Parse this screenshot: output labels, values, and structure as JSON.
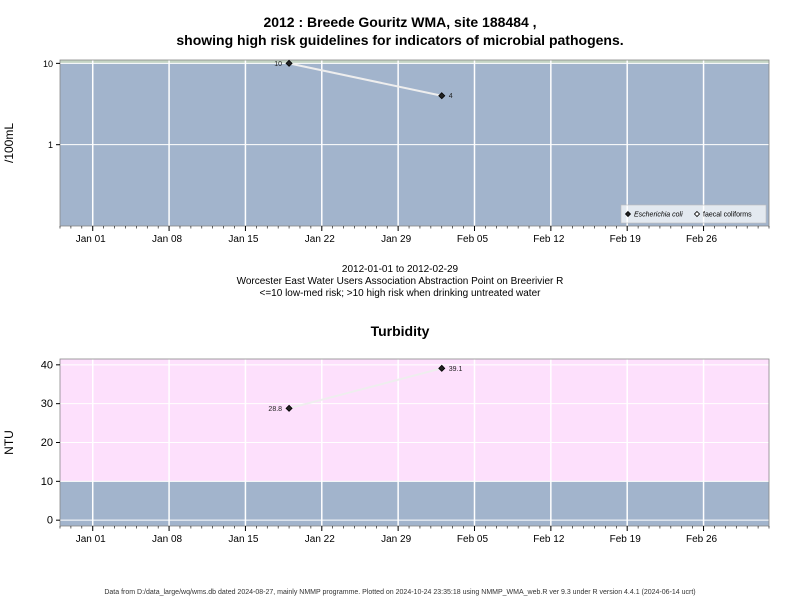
{
  "figure": {
    "title_line1": "2012 : Breede Gouritz WMA, site 188484 ,",
    "title_line2": "showing high risk guidelines for indicators of microbial pathogens.",
    "caption_line1": "2012-01-01 to 2012-02-29",
    "caption_line2": "Worcester East Water Users Association Abstraction Point on Breerivier R",
    "caption_line3": "<=10 low-med risk; >10 high risk when drinking untreated water",
    "footer": "Data from D:/data_large/wq/wms.db dated 2024-08-27, mainly NMMP programme. Plotted on 2024-10-24 23:35:18 using NMMP_WMA_web.R ver 9.3 under R version 4.4.1 (2024-06-14 ucrt)"
  },
  "chart_data": [
    {
      "type": "line",
      "ylabel": "/100mL",
      "y_scale": "log",
      "xlim": [
        "2011-12-29",
        "2012-03-03"
      ],
      "ylim": [
        0.1,
        11
      ],
      "grid": true,
      "x_ticks": [
        "Jan 01",
        "Jan 08",
        "Jan 15",
        "Jan 22",
        "Jan 29",
        "Feb 05",
        "Feb 12",
        "Feb 19",
        "Feb 26"
      ],
      "x_tick_dates": [
        "2012-01-01",
        "2012-01-08",
        "2012-01-15",
        "2012-01-22",
        "2012-01-29",
        "2012-02-05",
        "2012-02-12",
        "2012-02-19",
        "2012-02-26"
      ],
      "y_ticks": [
        1,
        10
      ],
      "y_tick_labels": [
        "1",
        "10"
      ],
      "bands": [
        {
          "from": 0.1,
          "to": 10,
          "color": "#a2b4cc"
        },
        {
          "from": 10,
          "to": 11,
          "color": "#c4d4c4"
        }
      ],
      "series": [
        {
          "name": "Escherichia coli",
          "marker": "filled-diamond",
          "x": [
            "2012-01-19",
            "2012-02-02"
          ],
          "y": [
            10,
            4
          ],
          "labels": [
            "10",
            "4"
          ]
        },
        {
          "name": "faecal coliforms",
          "marker": "open-diamond",
          "x": [],
          "y": []
        }
      ],
      "legend": {
        "position": "bottom-right"
      }
    },
    {
      "type": "line",
      "title": "Turbidity",
      "ylabel": "NTU",
      "xlim": [
        "2011-12-29",
        "2012-03-03"
      ],
      "ylim": [
        -1.5,
        41.5
      ],
      "grid": true,
      "x_ticks": [
        "Jan 01",
        "Jan 08",
        "Jan 15",
        "Jan 22",
        "Jan 29",
        "Feb 05",
        "Feb 12",
        "Feb 19",
        "Feb 26"
      ],
      "x_tick_dates": [
        "2012-01-01",
        "2012-01-08",
        "2012-01-15",
        "2012-01-22",
        "2012-01-29",
        "2012-02-05",
        "2012-02-12",
        "2012-02-19",
        "2012-02-26"
      ],
      "y_ticks": [
        0,
        10,
        20,
        30,
        40
      ],
      "y_tick_labels": [
        "0",
        "10",
        "20",
        "30",
        "40"
      ],
      "bands": [
        {
          "from": -1.5,
          "to": 10,
          "color": "#a2b4cc"
        },
        {
          "from": 10,
          "to": 41.5,
          "color": "#fde0fc"
        }
      ],
      "series": [
        {
          "name": "Turbidity",
          "marker": "filled-diamond",
          "x": [
            "2012-01-19",
            "2012-02-02"
          ],
          "y": [
            28.8,
            39.1
          ],
          "labels": [
            "28.8",
            "39.1"
          ]
        }
      ]
    }
  ]
}
